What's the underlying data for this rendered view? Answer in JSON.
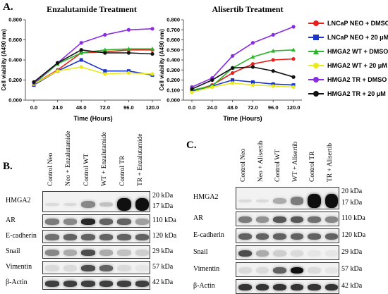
{
  "panels": {
    "a": "A.",
    "b": "B.",
    "c": "C."
  },
  "chart_data": [
    {
      "type": "line",
      "title": "Enzalutamide Treatment",
      "xlabel": "Time (Hours)",
      "ylabel": "Cell viability (A490 nm)",
      "x": [
        0,
        24,
        48,
        72,
        96,
        120
      ],
      "x_tick_labels": [
        "0.0",
        "24.0",
        "48.0",
        "72.0",
        "96.0",
        "120.0"
      ],
      "ylim": [
        0,
        0.8
      ],
      "y_ticks": [
        0,
        0.2,
        0.4,
        0.6,
        0.8
      ],
      "y_tick_labels": [
        "0.000",
        "0.200",
        "0.400",
        "0.600",
        "0.800"
      ],
      "series": [
        {
          "name": "LNCaP NEO + DMSO",
          "color": "#e8201b",
          "marker": "circle",
          "values": [
            0.16,
            0.3,
            0.47,
            0.48,
            0.5,
            0.5
          ]
        },
        {
          "name": "LNCaP NEO + 20 μM",
          "color": "#1a35c8",
          "marker": "square",
          "values": [
            0.15,
            0.29,
            0.4,
            0.29,
            0.29,
            0.25
          ]
        },
        {
          "name": "HMGA2 WT + DMSO",
          "color": "#2ab52a",
          "marker": "triangle",
          "values": [
            0.16,
            0.36,
            0.47,
            0.5,
            0.51,
            0.51
          ]
        },
        {
          "name": "HMGA2 WT + 20 μM",
          "color": "#eaea1a",
          "marker": "circle",
          "values": [
            0.16,
            0.29,
            0.33,
            0.26,
            0.27,
            0.26
          ]
        },
        {
          "name": "HMGA2 TR + DMSO",
          "color": "#8a2be2",
          "marker": "circle",
          "values": [
            0.17,
            0.37,
            0.57,
            0.65,
            0.7,
            0.71
          ]
        },
        {
          "name": "HMGA2 TR + 20 μM",
          "color": "#111111",
          "marker": "circle",
          "values": [
            0.18,
            0.37,
            0.5,
            0.47,
            0.47,
            0.46
          ]
        }
      ]
    },
    {
      "type": "line",
      "title": "Alisertib Treatment",
      "xlabel": "Time (Hours)",
      "ylabel": "Cell viability (A490 nm)",
      "x": [
        0,
        24,
        48,
        72,
        96,
        120
      ],
      "x_tick_labels": [
        "0.0",
        "24.0",
        "48.0",
        "72.0",
        "96.0",
        "120.0"
      ],
      "ylim": [
        0,
        0.8
      ],
      "y_ticks": [
        0,
        0.1,
        0.2,
        0.3,
        0.4,
        0.5,
        0.6,
        0.7,
        0.8
      ],
      "y_tick_labels": [
        "0.000",
        "0.100",
        "0.200",
        "0.300",
        "0.400",
        "0.500",
        "0.600",
        "0.700",
        "0.800"
      ],
      "series": [
        {
          "name": "LNCaP NEO + DMSO",
          "color": "#e8201b",
          "marker": "circle",
          "values": [
            0.09,
            0.15,
            0.27,
            0.36,
            0.4,
            0.41
          ]
        },
        {
          "name": "LNCaP NEO + 20 μM",
          "color": "#1a35c8",
          "marker": "square",
          "values": [
            0.09,
            0.14,
            0.2,
            0.18,
            0.16,
            0.15
          ]
        },
        {
          "name": "HMGA2 WT + DMSO",
          "color": "#2ab52a",
          "marker": "triangle",
          "values": [
            0.1,
            0.14,
            0.32,
            0.43,
            0.49,
            0.5
          ]
        },
        {
          "name": "HMGA2 WT + 20 μM",
          "color": "#eaea1a",
          "marker": "circle",
          "values": [
            0.08,
            0.13,
            0.17,
            0.15,
            0.14,
            0.13
          ]
        },
        {
          "name": "HMGA2 TR + DMSO",
          "color": "#8a2be2",
          "marker": "circle",
          "values": [
            0.13,
            0.22,
            0.44,
            0.57,
            0.65,
            0.73
          ]
        },
        {
          "name": "HMGA2 TR + 20 μM",
          "color": "#111111",
          "marker": "circle",
          "values": [
            0.11,
            0.2,
            0.32,
            0.33,
            0.29,
            0.23
          ]
        }
      ]
    }
  ],
  "legend": [
    {
      "label": "LNCaP NEO + DMSO",
      "color": "#e8201b",
      "marker": "circle"
    },
    {
      "label": "LNCaP NEO + 20 μM",
      "color": "#1a35c8",
      "marker": "square"
    },
    {
      "label": "HMGA2 WT + DMSO",
      "color": "#2ab52a",
      "marker": "triangle"
    },
    {
      "label": "HMGA2 WT + 20 μM",
      "color": "#eaea1a",
      "marker": "circle"
    },
    {
      "label": "HMGA2 TR + DMSO",
      "color": "#8a2be2",
      "marker": "circle"
    },
    {
      "label": "HMGA2 TR + 20 μM",
      "color": "#111111",
      "marker": "circle"
    }
  ],
  "blot_b": {
    "lanes": [
      "Control Neo",
      "Neo + Enzalutamide",
      "Control WT",
      "WT + Enzalutamide",
      "Control TR",
      "TR + Enzalutamide"
    ],
    "rows": [
      {
        "name": "HMGA2",
        "kda": [
          "20 kDa",
          "17 kDa"
        ],
        "intensities": [
          0.1,
          0.1,
          0.45,
          0.2,
          0.95,
          0.95
        ]
      },
      {
        "name": "AR",
        "kda": [
          "110 kDa"
        ],
        "intensities": [
          0.5,
          0.45,
          0.85,
          0.6,
          0.6,
          0.35
        ]
      },
      {
        "name": "E-cadherin",
        "kda": [
          "120 kDa"
        ],
        "intensities": [
          0.55,
          0.6,
          0.6,
          0.6,
          0.6,
          0.6
        ]
      },
      {
        "name": "Snail",
        "kda": [
          "29 kDa"
        ],
        "intensities": [
          0.45,
          0.3,
          0.7,
          0.3,
          0.2,
          0.15
        ]
      },
      {
        "name": "Vimentin",
        "kda": [
          "57 kDa"
        ],
        "intensities": [
          0.1,
          0.1,
          0.7,
          0.6,
          0.1,
          0.05
        ]
      },
      {
        "name": "β-Actin",
        "kda": [
          "42 kDa"
        ],
        "intensities": [
          0.75,
          0.75,
          0.75,
          0.75,
          0.75,
          0.75
        ]
      }
    ]
  },
  "blot_c": {
    "lanes": [
      "Control Neo",
      "Neo + Alisertib",
      "Control WT",
      "WT + Alisertib",
      "Control TR",
      "TR + Alisertib"
    ],
    "rows": [
      {
        "name": "HMGA2",
        "kda": [
          "20 kDa",
          "17 kDa"
        ],
        "intensities": [
          0.1,
          0.1,
          0.3,
          0.5,
          1.0,
          1.0
        ]
      },
      {
        "name": "AR",
        "kda": [
          "110 kDa"
        ],
        "intensities": [
          0.5,
          0.4,
          0.65,
          0.65,
          0.55,
          0.45
        ]
      },
      {
        "name": "E-cadherin",
        "kda": [
          "120 kDa"
        ],
        "intensities": [
          0.6,
          0.6,
          0.6,
          0.6,
          0.6,
          0.6
        ]
      },
      {
        "name": "Snail",
        "kda": [
          "29 kDa"
        ],
        "intensities": [
          0.7,
          0.3,
          0.15,
          0.1,
          0.05,
          0.05
        ]
      },
      {
        "name": "Vimentin",
        "kda": [
          "57 kDa"
        ],
        "intensities": [
          0.1,
          0.1,
          0.6,
          0.95,
          0.1,
          0.05
        ]
      },
      {
        "name": "β-Actin",
        "kda": [
          "42 kDa"
        ],
        "intensities": [
          0.8,
          0.8,
          0.8,
          0.8,
          0.8,
          0.8
        ]
      }
    ]
  }
}
